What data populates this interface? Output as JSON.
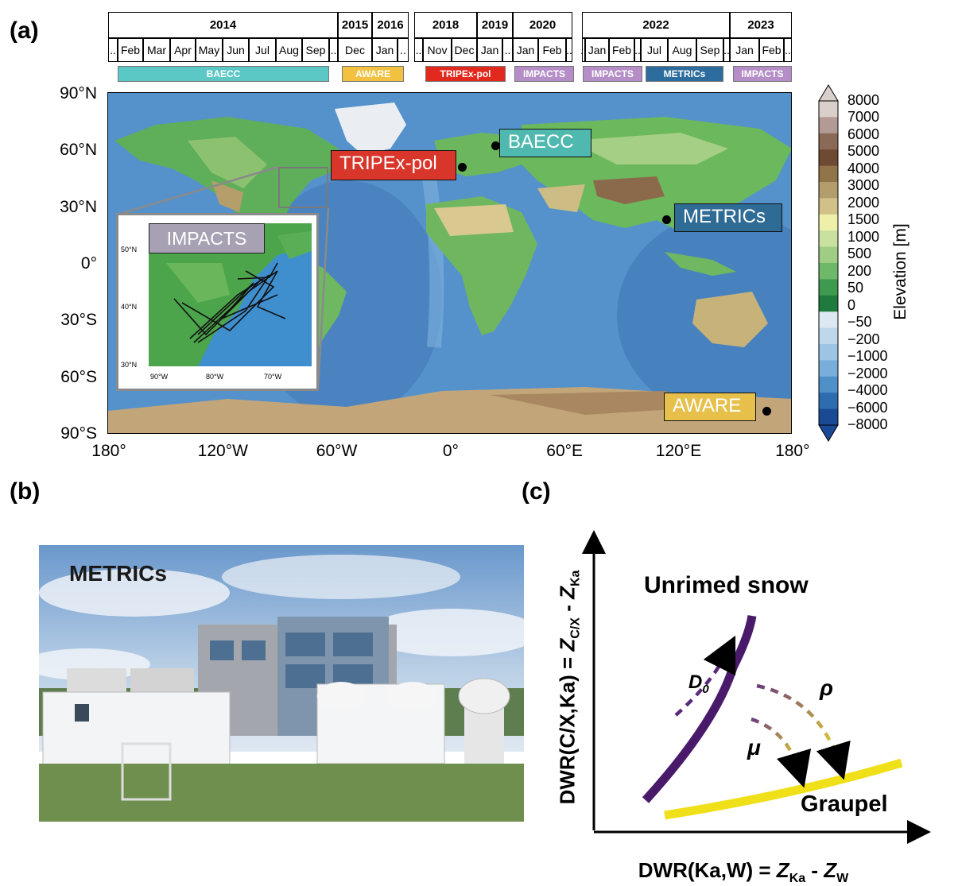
{
  "panels": {
    "a": "(a)",
    "b": "(b)",
    "c": "(c)"
  },
  "timeline": {
    "years": [
      "2014",
      "2015",
      "2016",
      "2018",
      "2019",
      "2020",
      "2022",
      "2023"
    ],
    "months": [
      "..",
      "Feb",
      "Mar",
      "Apr",
      "May",
      "Jun",
      "Jul",
      "Aug",
      "Sep",
      "..",
      "Dec",
      "Jan",
      "..",
      "..",
      "Nov",
      "Dec",
      "Jan",
      "..",
      "Jan",
      "Feb",
      "..",
      "..",
      "Jan",
      "Feb",
      "..",
      "Jul",
      "Aug",
      "Sep",
      "..",
      "Jan",
      "Feb",
      ".."
    ],
    "campaigns": [
      {
        "label": "BAECC",
        "color": "#5bc8c6"
      },
      {
        "label": "AWARE",
        "color": "#f3c140"
      },
      {
        "label": "TRIPEx-pol",
        "color": "#e12a1d"
      },
      {
        "label": "IMPACTS",
        "color": "#b58ec8"
      },
      {
        "label": "IMPACTS",
        "color": "#b58ec8"
      },
      {
        "label": "METRICs",
        "color": "#2c6d9d"
      },
      {
        "label": "IMPACTS",
        "color": "#b58ec8"
      }
    ]
  },
  "map": {
    "lat_labels": [
      "90°N",
      "60°N",
      "30°N",
      "0°",
      "30°S",
      "60°S",
      "90°S"
    ],
    "lon_labels": [
      "180°",
      "120°W",
      "60°W",
      "0°",
      "60°E",
      "120°E",
      "180°"
    ],
    "sites": [
      {
        "label": "BAECC",
        "color": "#4fb9b0"
      },
      {
        "label": "TRIPEx-pol",
        "color": "#d8362a"
      },
      {
        "label": "METRICs",
        "color": "#2e6b95"
      },
      {
        "label": "AWARE",
        "color": "#e6c04a"
      }
    ],
    "inset": {
      "label": "IMPACTS",
      "lat_ticks": [
        "50°N",
        "40°N",
        "30°N"
      ],
      "lon_ticks": [
        "90°W",
        "80°W",
        "70°W"
      ]
    }
  },
  "colorbar": {
    "title": "Elevation [m]",
    "ticks": [
      "8000",
      "7000",
      "6000",
      "5000",
      "4000",
      "3000",
      "2000",
      "1500",
      "1000",
      "500",
      "200",
      "50",
      "0",
      "−50",
      "−200",
      "−1000",
      "−2000",
      "−4000",
      "−6000",
      "−8000"
    ],
    "colors": [
      "#d9cfcb",
      "#b39a94",
      "#8a6a57",
      "#6e4a33",
      "#927449",
      "#b49d6c",
      "#d1c088",
      "#eef0aa",
      "#c8e0a0",
      "#9fcd85",
      "#6eb86a",
      "#3d9a4f",
      "#1e7a3d",
      "#dde9f2",
      "#bed7ea",
      "#9dc5e3",
      "#78aed9",
      "#4f90c8",
      "#2e6cb0",
      "#1a4a96"
    ]
  },
  "photo": {
    "caption": "METRICs"
  },
  "diagram": {
    "unrimed": "Unrimed snow",
    "graupel": "Graupel",
    "d0_main": "D",
    "d0_sub": "0",
    "rho": "ρ",
    "mu": "μ",
    "xlabel": {
      "pre": "DWR(Ka,W) = ",
      "z1": "Z",
      "s1": "Ka",
      "mid": " - ",
      "z2": "Z",
      "s2": "W"
    },
    "ylabel": {
      "pre": "DWR(C/X,Ka) = ",
      "z1": "Z",
      "s1": "C/X",
      "mid": " - ",
      "z2": "Z",
      "s2": "Ka"
    }
  }
}
